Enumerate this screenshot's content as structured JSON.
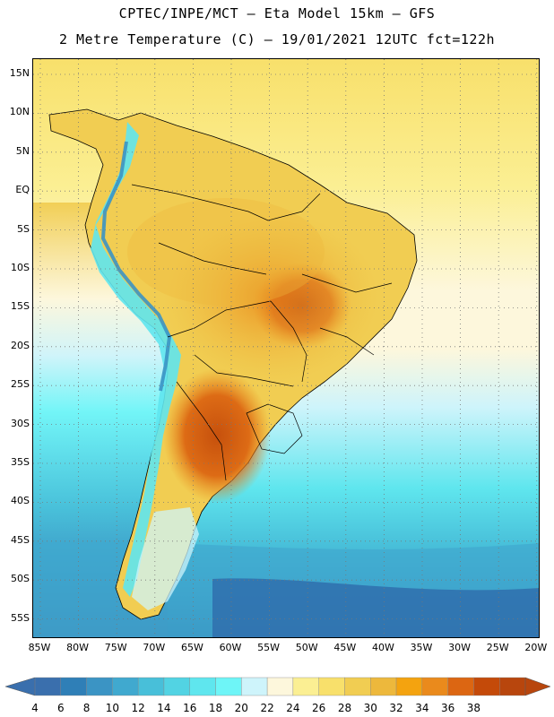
{
  "title": {
    "line1": "CPTEC/INPE/MCT –  Eta Model 15km – GFS",
    "line2": "2 Metre Temperature (C) – 19/01/2021 12UTC fct=122h"
  },
  "map": {
    "lat_labels": [
      "15N",
      "10N",
      "5N",
      "EQ",
      "5S",
      "10S",
      "15S",
      "20S",
      "25S",
      "30S",
      "35S",
      "40S",
      "45S",
      "50S",
      "55S"
    ],
    "lon_labels": [
      "85W",
      "80W",
      "75W",
      "70W",
      "65W",
      "60W",
      "55W",
      "50W",
      "45W",
      "40W",
      "35W",
      "30W",
      "25W",
      "20W"
    ]
  },
  "colorbar": {
    "labels": [
      "4",
      "6",
      "8",
      "10",
      "12",
      "14",
      "16",
      "18",
      "20",
      "22",
      "24",
      "26",
      "28",
      "30",
      "32",
      "34",
      "36",
      "38"
    ],
    "colors": [
      "#3a6fad",
      "#2f7fb7",
      "#3b94c4",
      "#40a9cf",
      "#48bfd9",
      "#52d3e3",
      "#5fe6ee",
      "#6ef5f7",
      "#cef4fb",
      "#fdf7dc",
      "#fbef93",
      "#f8e06b",
      "#f1cd52",
      "#edb83c",
      "#f4a30f",
      "#ea8a1c",
      "#dc6612",
      "#c44a09",
      "#b8460d"
    ],
    "low_arrow_color": "#3a6fad",
    "high_arrow_color": "#b8460d"
  }
}
